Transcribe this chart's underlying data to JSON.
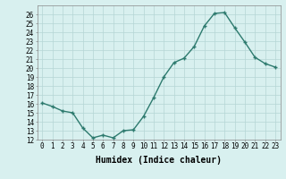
{
  "x": [
    0,
    1,
    2,
    3,
    4,
    5,
    6,
    7,
    8,
    9,
    10,
    11,
    12,
    13,
    14,
    15,
    16,
    17,
    18,
    19,
    20,
    21,
    22,
    23
  ],
  "y": [
    16.1,
    15.7,
    15.2,
    15.0,
    13.3,
    12.2,
    12.5,
    12.2,
    13.0,
    13.1,
    14.6,
    16.7,
    19.0,
    20.6,
    21.1,
    22.4,
    24.7,
    26.1,
    26.2,
    24.5,
    22.9,
    21.2,
    20.5,
    20.1
  ],
  "line_color": "#2d7a6e",
  "marker": "+",
  "marker_size": 3,
  "bg_color": "#d8f0ef",
  "grid_color": "#b5d5d5",
  "xlabel": "Humidex (Indice chaleur)",
  "ylabel": "",
  "ylim": [
    12,
    27
  ],
  "xlim": [
    -0.5,
    23.5
  ],
  "yticks": [
    12,
    13,
    14,
    15,
    16,
    17,
    18,
    19,
    20,
    21,
    22,
    23,
    24,
    25,
    26
  ],
  "xticks": [
    0,
    1,
    2,
    3,
    4,
    5,
    6,
    7,
    8,
    9,
    10,
    11,
    12,
    13,
    14,
    15,
    16,
    17,
    18,
    19,
    20,
    21,
    22,
    23
  ],
  "xtick_labels": [
    "0",
    "1",
    "2",
    "3",
    "4",
    "5",
    "6",
    "7",
    "8",
    "9",
    "10",
    "11",
    "12",
    "13",
    "14",
    "15",
    "16",
    "17",
    "18",
    "19",
    "20",
    "21",
    "22",
    "23"
  ],
  "tick_fontsize": 5.5,
  "xlabel_fontsize": 7,
  "line_width": 1.0
}
